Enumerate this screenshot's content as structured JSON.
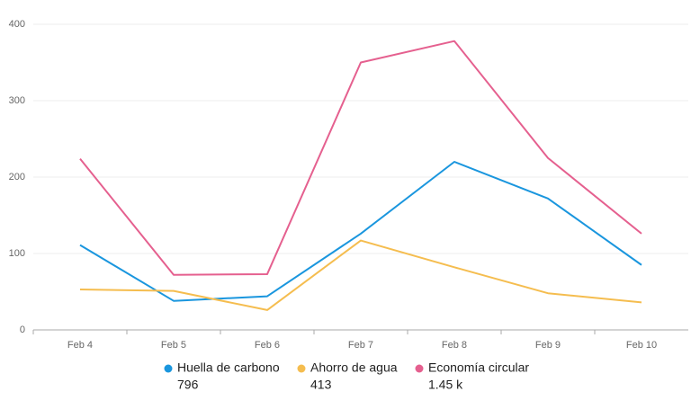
{
  "chart_data": {
    "type": "line",
    "categories": [
      "Feb 4",
      "Feb 5",
      "Feb 6",
      "Feb 7",
      "Feb 8",
      "Feb 9",
      "Feb 10"
    ],
    "series": [
      {
        "name": "Huella de carbono",
        "color": "#1a96de",
        "values": [
          111,
          38,
          44,
          126,
          220,
          172,
          85
        ],
        "total": 796
      },
      {
        "name": "Ahorro de agua",
        "color": "#f5bd4f",
        "values": [
          53,
          51,
          26,
          117,
          82,
          48,
          36
        ],
        "total": 413
      },
      {
        "name": "Economía circular",
        "color": "#e5608f",
        "values": [
          224,
          72,
          73,
          350,
          378,
          225,
          126
        ],
        "total": {
          "value": 1450,
          "label": "1.45 k"
        }
      }
    ],
    "ylim": [
      0,
      400
    ],
    "yticks": [
      0,
      100,
      200,
      300,
      400
    ],
    "grid": true,
    "legend": "bottom"
  }
}
